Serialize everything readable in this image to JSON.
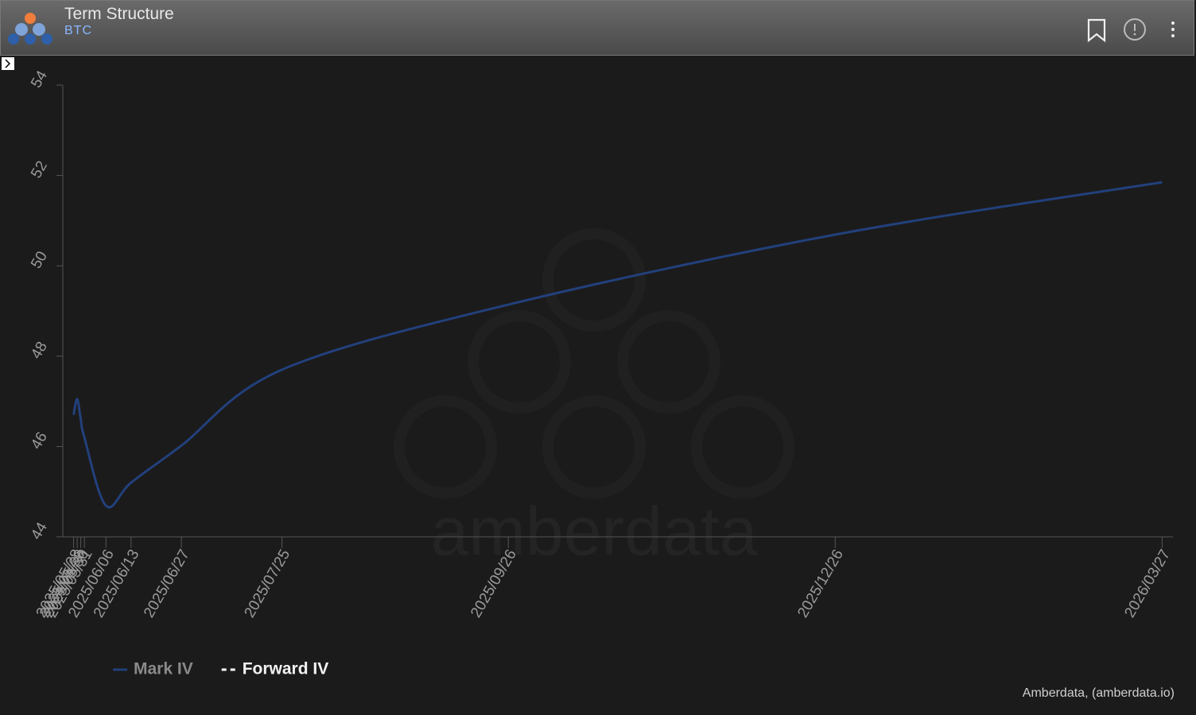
{
  "header": {
    "title": "Term Structure",
    "subtitle": "BTC"
  },
  "chart_data": {
    "type": "line",
    "x": [
      "2025/05/28",
      "2025/05/29",
      "2025/05/30",
      "2025/05/31",
      "2025/06/06",
      "2025/06/13",
      "2025/06/27",
      "2025/07/25",
      "2025/09/26",
      "2025/12/26",
      "2026/03/27"
    ],
    "series": [
      {
        "name": "Mark IV",
        "color": "#22407c",
        "dash": false,
        "values": [
          46.7,
          47.05,
          46.6,
          46.2,
          44.69,
          45.2,
          46.02,
          47.7,
          49.14,
          50.69,
          51.85
        ]
      },
      {
        "name": "Forward IV",
        "color": "#ffffff",
        "dash": true,
        "values": [
          null,
          null,
          null,
          null,
          null,
          null,
          null,
          null,
          null,
          null,
          null
        ]
      }
    ],
    "xlim": [
      "2025/05/25",
      "2026/03/30"
    ],
    "xticks": [
      "2025/05/28",
      "2025/05/29",
      "2025/05/30",
      "2025/05/31",
      "2025/06/06",
      "2025/06/13",
      "2025/06/27",
      "2025/07/25",
      "2025/09/26",
      "2025/12/26",
      "2026/03/27"
    ],
    "ylim": [
      44,
      54
    ],
    "yticks": [
      44,
      46,
      48,
      50,
      52,
      54
    ],
    "watermark": "amberdata",
    "credits": "Amberdata, (amberdata.io)"
  }
}
